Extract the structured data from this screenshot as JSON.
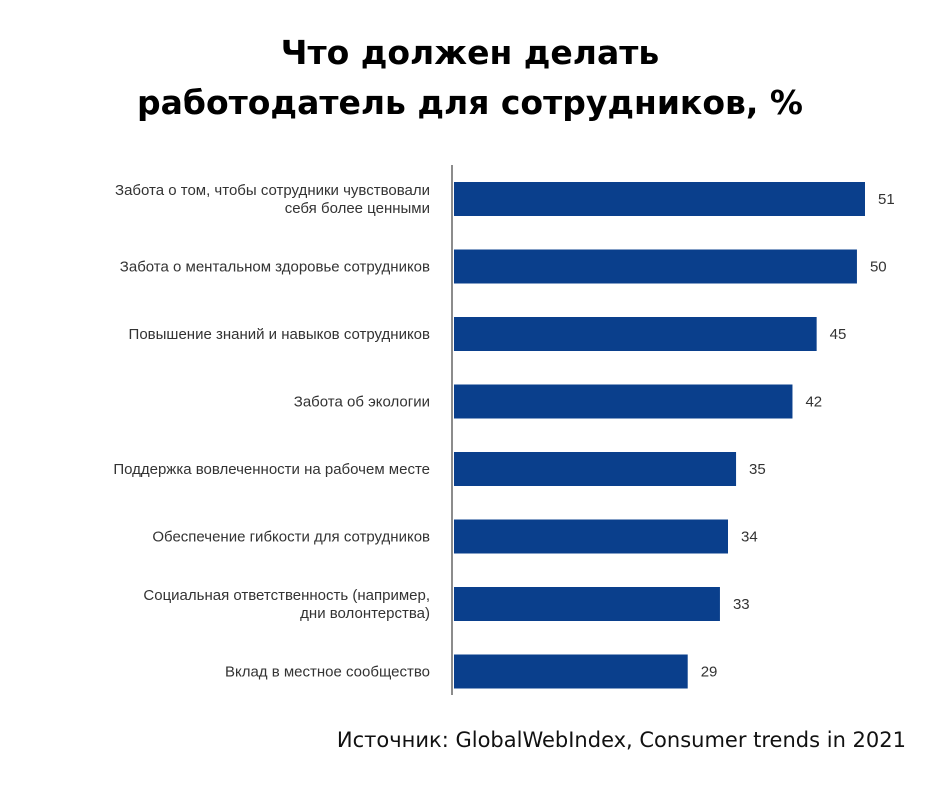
{
  "title": {
    "line1": "Что должен делать",
    "line2": "работодатель для сотрудников, %"
  },
  "source": "Источник: GlobalWebIndex, Consumer trends in 2021",
  "colors": {
    "bar": "#0a3f8c",
    "axis": "#666666",
    "text": "#333333"
  },
  "chart_data": {
    "type": "bar",
    "orientation": "horizontal",
    "categories": [
      [
        "Забота о том, чтобы сотрудники чувствовали",
        "себя более ценными"
      ],
      [
        "Забота о ментальном здоровье сотрудников"
      ],
      [
        "Повышение знаний и навыков сотрудников"
      ],
      [
        "Забота об экологии"
      ],
      [
        "Поддержка вовлеченности на рабочем месте"
      ],
      [
        "Обеспечение гибкости для сотрудников"
      ],
      [
        "Социальная ответственность (например,",
        "дни волонтерства)"
      ],
      [
        "Вклад в местное сообщество"
      ]
    ],
    "values": [
      51,
      50,
      45,
      42,
      35,
      34,
      33,
      29
    ],
    "data_labels": [
      "51",
      "50",
      "45",
      "42",
      "35",
      "34",
      "33",
      "29"
    ],
    "xlim": [
      0,
      51
    ],
    "grid": false,
    "legend": "none"
  }
}
